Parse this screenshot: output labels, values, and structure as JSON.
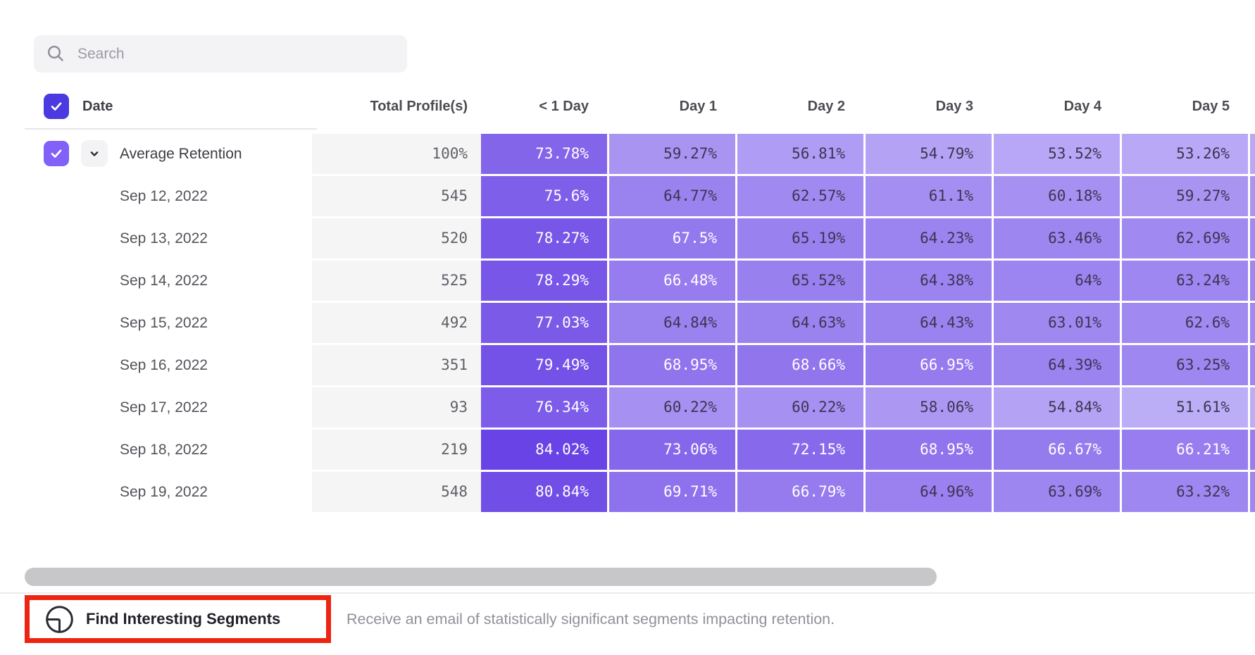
{
  "search": {
    "placeholder": "Search"
  },
  "table": {
    "date_header": "Date",
    "columns": [
      "Total Profile(s)",
      "< 1 Day",
      "Day 1",
      "Day 2",
      "Day 3",
      "Day 4",
      "Day 5"
    ],
    "average_row": {
      "label": "Average Retention",
      "total": "100%",
      "values": [
        "73.78%",
        "59.27%",
        "56.81%",
        "54.79%",
        "53.52%",
        "53.26%"
      ]
    },
    "rows": [
      {
        "date": "Sep 12, 2022",
        "total": "545",
        "values": [
          "75.6%",
          "64.77%",
          "62.57%",
          "61.1%",
          "60.18%",
          "59.27%"
        ]
      },
      {
        "date": "Sep 13, 2022",
        "total": "520",
        "values": [
          "78.27%",
          "67.5%",
          "65.19%",
          "64.23%",
          "63.46%",
          "62.69%"
        ]
      },
      {
        "date": "Sep 14, 2022",
        "total": "525",
        "values": [
          "78.29%",
          "66.48%",
          "65.52%",
          "64.38%",
          "64%",
          "63.24%"
        ]
      },
      {
        "date": "Sep 15, 2022",
        "total": "492",
        "values": [
          "77.03%",
          "64.84%",
          "64.63%",
          "64.43%",
          "63.01%",
          "62.6%"
        ]
      },
      {
        "date": "Sep 16, 2022",
        "total": "351",
        "values": [
          "79.49%",
          "68.95%",
          "68.66%",
          "66.95%",
          "64.39%",
          "63.25%"
        ]
      },
      {
        "date": "Sep 17, 2022",
        "total": "93",
        "values": [
          "76.34%",
          "60.22%",
          "60.22%",
          "58.06%",
          "54.84%",
          "51.61%"
        ]
      },
      {
        "date": "Sep 18, 2022",
        "total": "219",
        "values": [
          "84.02%",
          "73.06%",
          "72.15%",
          "68.95%",
          "66.67%",
          "66.21%"
        ]
      },
      {
        "date": "Sep 19, 2022",
        "total": "548",
        "values": [
          "80.84%",
          "69.71%",
          "66.79%",
          "64.96%",
          "63.69%",
          "63.32%"
        ]
      }
    ],
    "heatmap": {
      "min_value": 51,
      "max_value": 85,
      "light_color": "#beaff7",
      "dark_color": "#6640e4",
      "white_text_threshold": 66,
      "dark_text_color": "#3c3553"
    }
  },
  "footer": {
    "button_label": "Find Interesting Segments",
    "description": "Receive an email of statistically significant segments impacting retention.",
    "annotation_color": "#ee2412"
  }
}
